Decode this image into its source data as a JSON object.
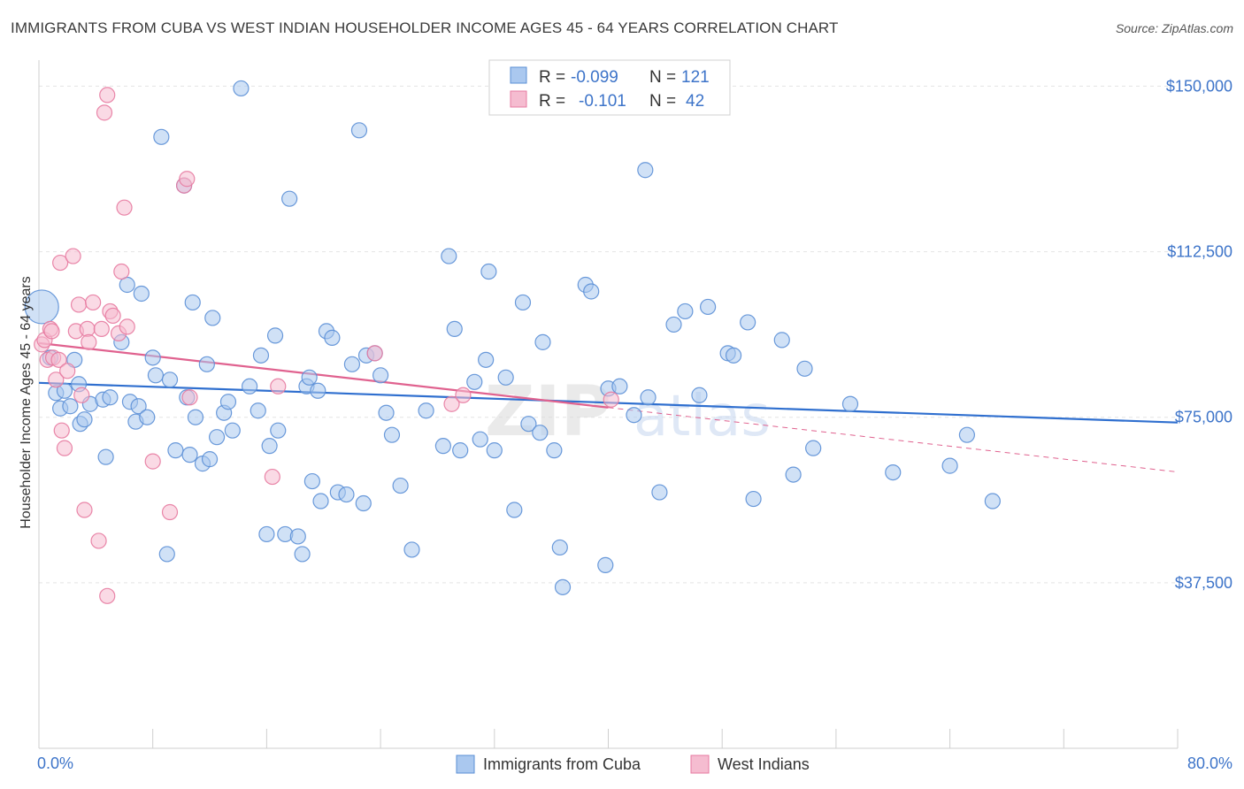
{
  "title": "IMMIGRANTS FROM CUBA VS WEST INDIAN HOUSEHOLDER INCOME AGES 45 - 64 YEARS CORRELATION CHART",
  "source": "Source: ZipAtlas.com",
  "watermark": {
    "part1": "ZIP",
    "part2": "atlas"
  },
  "colors": {
    "blue": "#5b8fd6",
    "blue_fill": "#aac8ef",
    "blue_line": "#2f6fcf",
    "pink": "#e77aa0",
    "pink_fill": "#f5bcd0",
    "pink_line": "#e0628f",
    "axis_text": "#3d74c9"
  },
  "chart_data": {
    "type": "scatter",
    "xlabel": "",
    "ylabel": "Householder Income Ages 45 - 64 years",
    "xlim": [
      0,
      80
    ],
    "ylim": [
      0,
      157500
    ],
    "x_tick_labels": [
      {
        "value": 0,
        "label": "0.0%"
      },
      {
        "value": 80,
        "label": "80.0%"
      }
    ],
    "y_ticks": [
      {
        "value": 37500,
        "label": "$37,500"
      },
      {
        "value": 75000,
        "label": "$75,000"
      },
      {
        "value": 112500,
        "label": "$112,500"
      },
      {
        "value": 150000,
        "label": "$150,000"
      }
    ],
    "grid": true,
    "legend": {
      "placement": "top-center",
      "entries": [
        {
          "r_label": "R =",
          "r_value": "-0.099",
          "n_label": "N =",
          "n_value": "121"
        },
        {
          "r_label": "R =",
          "r_value": "-0.101",
          "n_label": "N =",
          "n_value": "42"
        }
      ]
    },
    "bottom_legend": [
      "Immigrants from Cuba",
      "West Indians"
    ],
    "series": [
      {
        "name": "Immigrants from Cuba",
        "trend": {
          "x": [
            0,
            80
          ],
          "y": [
            82800,
            73800
          ]
        },
        "points": [
          [
            0.2,
            100000
          ],
          [
            0.8,
            88500
          ],
          [
            1.2,
            80500
          ],
          [
            1.5,
            77000
          ],
          [
            1.8,
            81000
          ],
          [
            2.2,
            77500
          ],
          [
            2.5,
            88000
          ],
          [
            2.8,
            82500
          ],
          [
            2.9,
            73500
          ],
          [
            3.2,
            74500
          ],
          [
            3.6,
            78000
          ],
          [
            4.5,
            79000
          ],
          [
            4.7,
            66000
          ],
          [
            5,
            79500
          ],
          [
            5.8,
            92000
          ],
          [
            6.2,
            105000
          ],
          [
            6.4,
            78500
          ],
          [
            6.8,
            74000
          ],
          [
            7,
            77500
          ],
          [
            7.2,
            103000
          ],
          [
            7.6,
            75000
          ],
          [
            8,
            88500
          ],
          [
            8.2,
            84500
          ],
          [
            8.6,
            138500
          ],
          [
            9,
            44000
          ],
          [
            9.2,
            83500
          ],
          [
            9.6,
            67500
          ],
          [
            10.2,
            127500
          ],
          [
            10.4,
            79500
          ],
          [
            10.6,
            66500
          ],
          [
            10.8,
            101000
          ],
          [
            11,
            75000
          ],
          [
            11.5,
            64500
          ],
          [
            11.8,
            87000
          ],
          [
            12,
            65500
          ],
          [
            12.2,
            97500
          ],
          [
            12.5,
            70500
          ],
          [
            13,
            76000
          ],
          [
            13.3,
            78500
          ],
          [
            13.6,
            72000
          ],
          [
            14.2,
            149500
          ],
          [
            14.8,
            82000
          ],
          [
            15.4,
            76500
          ],
          [
            15.6,
            89000
          ],
          [
            16,
            48500
          ],
          [
            16.2,
            68500
          ],
          [
            16.6,
            93500
          ],
          [
            16.8,
            72000
          ],
          [
            17.3,
            48500
          ],
          [
            17.6,
            124500
          ],
          [
            18.2,
            48000
          ],
          [
            18.5,
            44000
          ],
          [
            18.8,
            82000
          ],
          [
            19,
            84000
          ],
          [
            19.2,
            60500
          ],
          [
            19.6,
            81000
          ],
          [
            19.8,
            56000
          ],
          [
            20.2,
            94500
          ],
          [
            20.6,
            93000
          ],
          [
            21,
            58000
          ],
          [
            21.6,
            57500
          ],
          [
            22,
            87000
          ],
          [
            22.5,
            140000
          ],
          [
            22.8,
            55500
          ],
          [
            23,
            89000
          ],
          [
            23.6,
            89500
          ],
          [
            24,
            84500
          ],
          [
            24.4,
            76000
          ],
          [
            24.8,
            71000
          ],
          [
            25.4,
            59500
          ],
          [
            26.2,
            45000
          ],
          [
            27.2,
            76500
          ],
          [
            28.4,
            68500
          ],
          [
            28.8,
            111500
          ],
          [
            29.2,
            95000
          ],
          [
            29.6,
            67500
          ],
          [
            30.6,
            83000
          ],
          [
            31,
            70000
          ],
          [
            31.4,
            88000
          ],
          [
            31.6,
            108000
          ],
          [
            32,
            67500
          ],
          [
            32.8,
            84000
          ],
          [
            33.4,
            54000
          ],
          [
            34,
            101000
          ],
          [
            34.4,
            73500
          ],
          [
            35.2,
            71500
          ],
          [
            35.4,
            92000
          ],
          [
            36.2,
            67500
          ],
          [
            36.6,
            45500
          ],
          [
            36.8,
            36500
          ],
          [
            38.4,
            105000
          ],
          [
            38.8,
            103500
          ],
          [
            39.8,
            41500
          ],
          [
            40,
            81500
          ],
          [
            40.8,
            82000
          ],
          [
            41.8,
            75500
          ],
          [
            42.6,
            131000
          ],
          [
            42.8,
            79500
          ],
          [
            43.6,
            58000
          ],
          [
            44.6,
            96000
          ],
          [
            45.4,
            99000
          ],
          [
            46.4,
            80000
          ],
          [
            47,
            100000
          ],
          [
            48.4,
            89500
          ],
          [
            48.8,
            89000
          ],
          [
            49.8,
            96500
          ],
          [
            50.2,
            56500
          ],
          [
            52.2,
            92500
          ],
          [
            53,
            62000
          ],
          [
            53.8,
            86000
          ],
          [
            54.4,
            68000
          ],
          [
            57,
            78000
          ],
          [
            60,
            62500
          ],
          [
            64,
            64000
          ],
          [
            65.2,
            71000
          ],
          [
            67,
            56000
          ]
        ]
      },
      {
        "name": "West Indians",
        "trend": {
          "x": [
            0,
            80
          ],
          "y": [
            91800,
            62600
          ],
          "solid_until": 40
        },
        "points": [
          [
            0.2,
            91500
          ],
          [
            0.4,
            92500
          ],
          [
            0.6,
            88000
          ],
          [
            0.8,
            95000
          ],
          [
            0.9,
            94500
          ],
          [
            1,
            88500
          ],
          [
            1.2,
            83500
          ],
          [
            1.4,
            88000
          ],
          [
            1.5,
            110000
          ],
          [
            1.6,
            72000
          ],
          [
            1.8,
            68000
          ],
          [
            2,
            85500
          ],
          [
            2.4,
            111500
          ],
          [
            2.6,
            94500
          ],
          [
            2.8,
            100500
          ],
          [
            3,
            80000
          ],
          [
            3.2,
            54000
          ],
          [
            3.4,
            95000
          ],
          [
            3.5,
            92000
          ],
          [
            3.8,
            101000
          ],
          [
            4.2,
            47000
          ],
          [
            4.4,
            95000
          ],
          [
            4.6,
            144000
          ],
          [
            4.8,
            34500
          ],
          [
            5,
            99000
          ],
          [
            5.2,
            98000
          ],
          [
            5.6,
            94000
          ],
          [
            5.8,
            108000
          ],
          [
            6,
            122500
          ],
          [
            6.2,
            95500
          ],
          [
            8,
            65000
          ],
          [
            9.2,
            53500
          ],
          [
            10.2,
            127500
          ],
          [
            10.4,
            129000
          ],
          [
            10.6,
            79500
          ],
          [
            16.4,
            61500
          ],
          [
            16.8,
            82000
          ],
          [
            23.6,
            89500
          ],
          [
            29,
            78000
          ],
          [
            29.8,
            80000
          ],
          [
            40.2,
            79000
          ],
          [
            4.8,
            148000
          ]
        ]
      }
    ]
  }
}
